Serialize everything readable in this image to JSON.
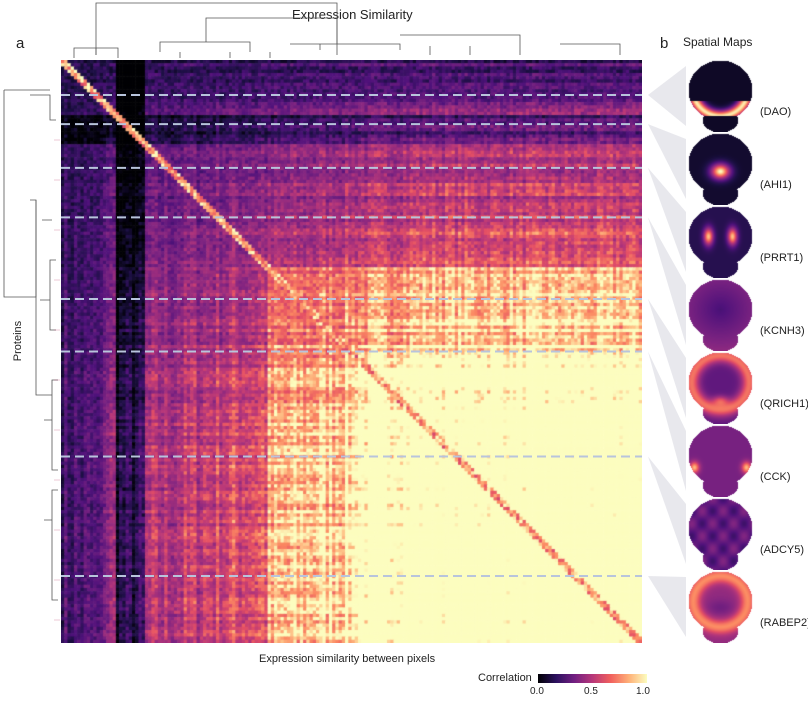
{
  "panel_a": "a",
  "panel_b": "b",
  "top_title": "Expression Similarity",
  "side_title": "Spatial Maps",
  "y_label": "Proteins",
  "x_label": "Expression similarity between pixels",
  "colorbar": {
    "title": "Correlation",
    "ticks": [
      "0.0",
      "0.5",
      "1.0"
    ],
    "colormap": "magma"
  },
  "spatial_maps": [
    {
      "label": "(DAO)",
      "pattern": "bottom"
    },
    {
      "label": "(AHI1)",
      "pattern": "center"
    },
    {
      "label": "(PRRT1)",
      "pattern": "bilateral"
    },
    {
      "label": "(KCNH3)",
      "pattern": "diffuse"
    },
    {
      "label": "(QRICH1)",
      "pattern": "ring"
    },
    {
      "label": "(CCK)",
      "pattern": "lateral-bottom"
    },
    {
      "label": "(ADCY5)",
      "pattern": "faint"
    },
    {
      "label": "(RABEP2)",
      "pattern": "bright-ring"
    }
  ],
  "chart_data": {
    "type": "heatmap",
    "title": "Expression Similarity",
    "xlabel": "Expression similarity between pixels",
    "ylabel": "Proteins",
    "value_range": [
      0.0,
      1.0
    ],
    "cluster_boundaries_fraction": [
      0.06,
      0.11,
      0.185,
      0.27,
      0.41,
      0.5,
      0.68,
      0.885
    ],
    "separator_fraction": [
      0.06,
      0.11,
      0.185,
      0.27,
      0.41,
      0.5,
      0.68,
      0.885
    ]
  }
}
